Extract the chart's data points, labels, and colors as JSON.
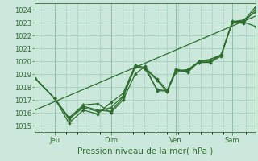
{
  "xlabel": "Pression niveau de la mer( hPa )",
  "bg_color": "#cce8dc",
  "grid_color": "#99ccb8",
  "line_color": "#2d6e2d",
  "ylim": [
    1014.5,
    1024.5
  ],
  "yticks": [
    1015,
    1016,
    1017,
    1018,
    1019,
    1020,
    1021,
    1022,
    1023,
    1024
  ],
  "xlim": [
    0.0,
    1.0
  ],
  "xtick_positions": [
    0.09,
    0.345,
    0.64,
    0.895
  ],
  "xtick_labels": [
    "Jeu",
    "Dim",
    "Ven",
    "Sam"
  ],
  "vline_positions": [
    0.09,
    0.345,
    0.64,
    0.895
  ],
  "straight_line": {
    "x": [
      0.0,
      1.0
    ],
    "y": [
      1016.2,
      1023.5
    ]
  },
  "lines": [
    {
      "x": [
        0.0,
        0.09,
        0.155,
        0.22,
        0.285,
        0.345,
        0.4,
        0.455,
        0.5,
        0.555,
        0.6,
        0.64,
        0.695,
        0.745,
        0.795,
        0.845,
        0.895,
        0.945,
        1.0
      ],
      "y": [
        1018.7,
        1017.1,
        1015.6,
        1016.5,
        1016.2,
        1016.1,
        1017.2,
        1019.55,
        1019.45,
        1018.5,
        1017.6,
        1019.25,
        1019.35,
        1020.0,
        1020.0,
        1020.5,
        1023.0,
        1023.05,
        1022.7
      ]
    },
    {
      "x": [
        0.0,
        0.09,
        0.155,
        0.22,
        0.285,
        0.345,
        0.4,
        0.455,
        0.5,
        0.555,
        0.6,
        0.64,
        0.695,
        0.745,
        0.795,
        0.845,
        0.895,
        0.945,
        1.0
      ],
      "y": [
        1018.7,
        1017.1,
        1015.5,
        1016.4,
        1016.1,
        1016.4,
        1017.3,
        1019.6,
        1019.4,
        1017.8,
        1017.7,
        1019.4,
        1019.15,
        1020.0,
        1020.15,
        1020.5,
        1023.05,
        1023.2,
        1023.8
      ]
    },
    {
      "x": [
        0.0,
        0.09,
        0.155,
        0.22,
        0.285,
        0.345,
        0.4,
        0.455,
        0.5,
        0.555,
        0.6,
        0.64,
        0.695,
        0.745,
        0.795,
        0.845,
        0.895,
        0.945,
        1.0
      ],
      "y": [
        1018.7,
        1017.1,
        1015.2,
        1016.2,
        1015.9,
        1016.8,
        1017.5,
        1019.7,
        1019.5,
        1018.6,
        1017.75,
        1019.3,
        1019.2,
        1020.0,
        1020.0,
        1020.5,
        1023.1,
        1023.1,
        1024.2
      ]
    },
    {
      "x": [
        0.0,
        0.09,
        0.155,
        0.22,
        0.285,
        0.345,
        0.4,
        0.455,
        0.5,
        0.555,
        0.6,
        0.64,
        0.695,
        0.745,
        0.795,
        0.845,
        0.895,
        0.945,
        1.0
      ],
      "y": [
        1018.7,
        1017.1,
        1015.6,
        1016.6,
        1016.7,
        1016.0,
        1017.0,
        1019.0,
        1019.6,
        1017.7,
        1017.7,
        1019.15,
        1019.3,
        1019.9,
        1019.9,
        1020.4,
        1023.0,
        1022.95,
        1024.0
      ]
    }
  ],
  "marker": "D",
  "markersize": 2.0,
  "linewidth": 0.9,
  "xlabel_fontsize": 7.5,
  "tick_fontsize": 6.0
}
